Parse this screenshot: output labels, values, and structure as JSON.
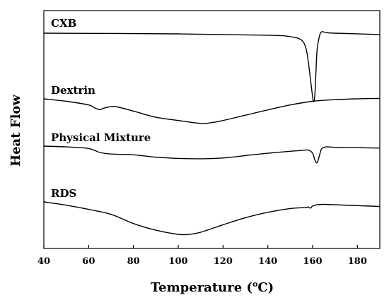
{
  "chart_data": {
    "type": "line",
    "title": "",
    "xlabel": "Temperature (°C)",
    "xlabel_parts": {
      "main": "Temperature (",
      "sup": "o",
      "unit": "C)"
    },
    "ylabel": "Heat Flow",
    "xlim": [
      40,
      190
    ],
    "x_ticks": [
      40,
      60,
      80,
      100,
      120,
      140,
      160,
      180
    ],
    "y_ticks": [],
    "grid": false,
    "legend": "none (series labelled inline above each curve)",
    "series": [
      {
        "name": "CXB",
        "x": [
          40,
          100,
          140,
          150,
          155,
          157,
          158,
          159,
          160,
          160.5,
          161,
          161.5,
          162,
          163,
          164,
          166,
          170,
          190
        ],
        "y": [
          0.0,
          -0.01,
          -0.03,
          -0.05,
          -0.1,
          -0.22,
          -0.4,
          -0.66,
          -0.93,
          -1.0,
          -0.9,
          -0.55,
          -0.25,
          -0.05,
          0.02,
          0.01,
          0.0,
          -0.02
        ]
      },
      {
        "name": "Dextrin",
        "x": [
          40,
          50,
          60,
          63,
          65,
          68,
          72,
          80,
          90,
          100,
          110,
          115,
          120,
          130,
          140,
          150,
          160,
          170,
          180,
          190
        ],
        "y": [
          0.0,
          -0.06,
          -0.15,
          -0.23,
          -0.26,
          -0.21,
          -0.19,
          -0.3,
          -0.45,
          -0.53,
          -0.6,
          -0.58,
          -0.53,
          -0.4,
          -0.27,
          -0.15,
          -0.06,
          -0.02,
          0.0,
          0.01
        ]
      },
      {
        "name": "Physical Mixture",
        "x": [
          40,
          50,
          60,
          65,
          70,
          80,
          90,
          100,
          110,
          120,
          130,
          140,
          150,
          155,
          158,
          160,
          161,
          162,
          163,
          164,
          166,
          170,
          180,
          190
        ],
        "y": [
          0.0,
          -0.02,
          -0.06,
          -0.16,
          -0.2,
          -0.22,
          -0.28,
          -0.31,
          -0.32,
          -0.3,
          -0.24,
          -0.18,
          -0.13,
          -0.11,
          -0.1,
          -0.18,
          -0.35,
          -0.42,
          -0.25,
          -0.07,
          -0.02,
          -0.03,
          -0.04,
          -0.05
        ]
      },
      {
        "name": "RDS",
        "x": [
          40,
          50,
          60,
          70,
          80,
          90,
          100,
          105,
          110,
          120,
          130,
          140,
          150,
          155,
          157,
          158,
          159,
          160,
          162,
          165,
          170,
          180,
          190
        ],
        "y": [
          0.0,
          -0.08,
          -0.18,
          -0.3,
          -0.52,
          -0.68,
          -0.78,
          -0.78,
          -0.73,
          -0.55,
          -0.38,
          -0.25,
          -0.16,
          -0.14,
          -0.14,
          -0.12,
          -0.15,
          -0.1,
          -0.07,
          -0.06,
          -0.07,
          -0.09,
          -0.11
        ]
      }
    ]
  }
}
